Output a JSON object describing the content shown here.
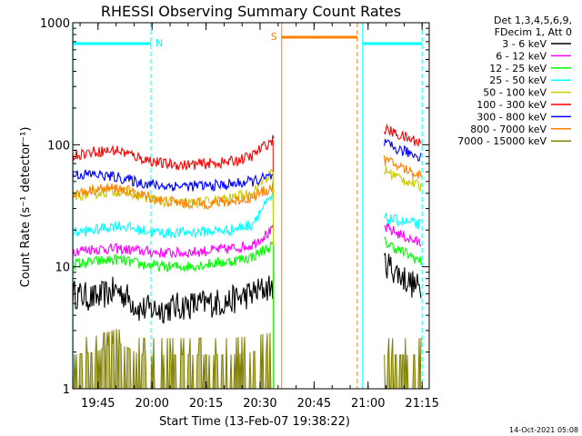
{
  "chart_data": {
    "type": "line",
    "title": "RHESSI Observing Summary Count Rates",
    "xlabel": "Start Time (13-Feb-07 19:38:22)",
    "ylabel": "Count Rate (s⁻¹ detector⁻¹)",
    "yscale": "log",
    "ylim": [
      1,
      1000
    ],
    "xlim_minutes": [
      19.633,
      21.283
    ],
    "xticks": [
      {
        "label": "19:45",
        "t": 19.75
      },
      {
        "label": "20:00",
        "t": 20.0
      },
      {
        "label": "20:15",
        "t": 20.25
      },
      {
        "label": "20:30",
        "t": 20.5
      },
      {
        "label": "20:45",
        "t": 20.75
      },
      {
        "label": "21:00",
        "t": 21.0
      },
      {
        "label": "21:15",
        "t": 21.25
      }
    ],
    "yticks": [
      {
        "label": "1",
        "v": 1
      },
      {
        "label": "10",
        "v": 10
      },
      {
        "label": "100",
        "v": 100
      },
      {
        "label": "1000",
        "v": 1000
      }
    ],
    "legend": {
      "header": [
        "Det 1,3,4,5,6,9,",
        "FDecim 1, Att 0"
      ],
      "position": "top-right"
    },
    "annotations": [
      {
        "text": "N",
        "color": "#00ffff"
      },
      {
        "text": "S",
        "color": "#ff7f00"
      }
    ],
    "footer": "14-Oct-2021 05:08",
    "series": [
      {
        "name": "3 - 6 keV",
        "color": "#000000",
        "seg1": [
          6.0,
          5.5,
          6.5,
          4.5,
          4.5,
          4.8,
          5.0,
          5.2,
          6.0,
          7.0
        ],
        "seg2": [
          11.0,
          9.0,
          7.5,
          6.5
        ]
      },
      {
        "name": "6 - 12 keV",
        "color": "#ff00ff",
        "seg1": [
          13.5,
          14.0,
          14.0,
          13.5,
          13.0,
          13.0,
          13.5,
          14.0,
          15.0,
          20.0
        ],
        "seg2": [
          21.0,
          19.0,
          17.0,
          15.5
        ]
      },
      {
        "name": "12 - 25 keV",
        "color": "#00ff00",
        "seg1": [
          10.5,
          11.0,
          11.5,
          10.5,
          10.0,
          10.0,
          10.5,
          11.0,
          12.0,
          15.0
        ],
        "seg2": [
          16.0,
          14.0,
          12.5,
          11.0
        ]
      },
      {
        "name": "25 - 50 keV",
        "color": "#00ffff",
        "seg1": [
          19.0,
          20.0,
          22.0,
          20.0,
          19.0,
          19.0,
          19.5,
          20.0,
          22.0,
          38.0
        ],
        "seg2": [
          25.0,
          24.0,
          23.0,
          22.0
        ]
      },
      {
        "name": "50 - 100 keV",
        "color": "#cccc00",
        "seg1": [
          38.0,
          40.0,
          42.0,
          38.0,
          34.0,
          33.0,
          34.0,
          36.0,
          40.0,
          60.0
        ],
        "seg2": [
          62.0,
          55.0,
          50.0,
          45.0
        ]
      },
      {
        "name": "100 - 300 keV",
        "color": "#ff0000",
        "seg1": [
          82.0,
          88.0,
          90.0,
          78.0,
          70.0,
          68.0,
          70.0,
          72.0,
          80.0,
          110.0
        ],
        "seg2": [
          135.0,
          122.0,
          112.0,
          105.0
        ]
      },
      {
        "name": "300 - 800 keV",
        "color": "#0000ff",
        "seg1": [
          57.0,
          57.0,
          54.0,
          49.0,
          46.0,
          46.0,
          46.0,
          47.0,
          50.0,
          55.0
        ],
        "seg2": [
          102.0,
          92.0,
          86.0,
          80.0
        ]
      },
      {
        "name": "800 - 7000 keV",
        "color": "#ff7f00",
        "seg1": [
          39.0,
          43.0,
          44.0,
          39.0,
          35.0,
          33.0,
          33.0,
          34.0,
          37.0,
          45.0
        ],
        "seg2": [
          75.0,
          68.0,
          61.0,
          56.0
        ]
      },
      {
        "name": "7000 - 15000 keV",
        "color": "#808000",
        "seg1": [
          1.5,
          1.6,
          2.0,
          1.5,
          1.5,
          1.5,
          1.5,
          1.5,
          1.6,
          1.8
        ],
        "seg2": [
          1.5,
          1.5,
          1.5,
          1.5
        ]
      }
    ]
  }
}
